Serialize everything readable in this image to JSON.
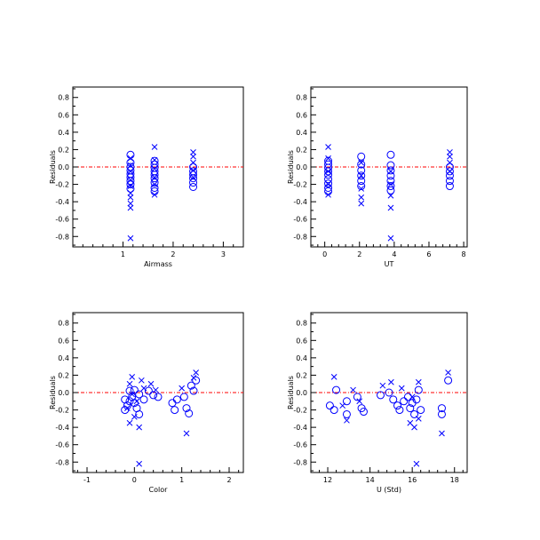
{
  "colors": {
    "marker": "#0000ff",
    "zero_line": "#ff0000",
    "axis": "#000000",
    "background": "#ffffff"
  },
  "chart_data": [
    {
      "type": "scatter",
      "xlabel": "Airmass",
      "ylabel": "Residuals",
      "xlim": [
        0,
        3.4
      ],
      "ylim": [
        -0.92,
        0.92
      ],
      "xticks": [
        1,
        2,
        3
      ],
      "yticks": [
        -0.8,
        -0.6,
        -0.4,
        -0.2,
        0.0,
        0.2,
        0.4,
        0.6,
        0.8
      ],
      "xtick_labels": [
        "1",
        "2",
        "3"
      ],
      "ytick_labels": [
        "-0.8",
        "-0.6",
        "-0.4",
        "-0.2",
        "0.0",
        "0.2",
        "0.4",
        "0.6",
        "0.8"
      ],
      "reference_line_y": 0,
      "series": [
        {
          "marker": "x",
          "points": [
            [
              1.15,
              -0.82
            ],
            [
              1.15,
              -0.47
            ],
            [
              1.15,
              -0.42
            ],
            [
              1.15,
              -0.35
            ],
            [
              1.15,
              -0.3
            ],
            [
              1.15,
              -0.22
            ],
            [
              1.15,
              -0.15
            ],
            [
              1.15,
              -0.05
            ],
            [
              1.15,
              0.02
            ],
            [
              1.15,
              0.1
            ],
            [
              1.63,
              0.23
            ],
            [
              1.63,
              0.08
            ],
            [
              1.63,
              -0.02
            ],
            [
              1.63,
              -0.12
            ],
            [
              1.63,
              -0.2
            ],
            [
              1.63,
              -0.32
            ],
            [
              2.4,
              0.17
            ],
            [
              2.4,
              0.12
            ],
            [
              2.4,
              0.05
            ],
            [
              2.4,
              -0.04
            ],
            [
              2.4,
              -0.12
            ]
          ]
        },
        {
          "marker": "o",
          "points": [
            [
              1.15,
              0.14
            ],
            [
              1.15,
              0.05
            ],
            [
              1.15,
              0.0
            ],
            [
              1.15,
              -0.04
            ],
            [
              1.15,
              -0.08
            ],
            [
              1.15,
              -0.12
            ],
            [
              1.15,
              -0.16
            ],
            [
              1.15,
              -0.2
            ],
            [
              1.15,
              -0.25
            ],
            [
              1.63,
              0.07
            ],
            [
              1.63,
              0.03
            ],
            [
              1.63,
              -0.01
            ],
            [
              1.63,
              -0.05
            ],
            [
              1.63,
              -0.09
            ],
            [
              1.63,
              -0.13
            ],
            [
              1.63,
              -0.18
            ],
            [
              1.63,
              -0.24
            ],
            [
              1.63,
              -0.28
            ],
            [
              2.4,
              0.0
            ],
            [
              2.4,
              -0.05
            ],
            [
              2.4,
              -0.09
            ],
            [
              2.4,
              -0.13
            ],
            [
              2.4,
              -0.18
            ],
            [
              2.4,
              -0.23
            ]
          ]
        }
      ]
    },
    {
      "type": "scatter",
      "xlabel": "UT",
      "ylabel": "Residuals",
      "xlim": [
        -0.8,
        8.2
      ],
      "ylim": [
        -0.92,
        0.92
      ],
      "xticks": [
        0,
        2,
        4,
        6,
        8
      ],
      "yticks": [
        -0.8,
        -0.6,
        -0.4,
        -0.2,
        0.0,
        0.2,
        0.4,
        0.6,
        0.8
      ],
      "xtick_labels": [
        "0",
        "2",
        "4",
        "6",
        "8"
      ],
      "ytick_labels": [
        "-0.8",
        "-0.6",
        "-0.4",
        "-0.2",
        "0.0",
        "0.2",
        "0.4",
        "0.6",
        "0.8"
      ],
      "reference_line_y": 0,
      "series": [
        {
          "marker": "x",
          "points": [
            [
              0.2,
              0.23
            ],
            [
              0.2,
              0.1
            ],
            [
              0.2,
              -0.05
            ],
            [
              0.2,
              -0.2
            ],
            [
              0.2,
              -0.32
            ],
            [
              2.1,
              0.05
            ],
            [
              2.1,
              -0.1
            ],
            [
              2.1,
              -0.25
            ],
            [
              2.1,
              -0.35
            ],
            [
              2.1,
              -0.42
            ],
            [
              3.8,
              -0.82
            ],
            [
              3.8,
              -0.47
            ],
            [
              3.8,
              -0.33
            ],
            [
              3.8,
              -0.2
            ],
            [
              3.8,
              -0.05
            ],
            [
              7.2,
              0.17
            ],
            [
              7.2,
              0.12
            ],
            [
              7.2,
              0.05
            ],
            [
              7.2,
              -0.05
            ]
          ]
        },
        {
          "marker": "o",
          "points": [
            [
              0.2,
              0.07
            ],
            [
              0.2,
              0.03
            ],
            [
              0.2,
              -0.01
            ],
            [
              0.2,
              -0.05
            ],
            [
              0.2,
              -0.09
            ],
            [
              0.2,
              -0.14
            ],
            [
              0.2,
              -0.19
            ],
            [
              0.2,
              -0.24
            ],
            [
              0.2,
              -0.28
            ],
            [
              2.1,
              0.12
            ],
            [
              2.1,
              0.03
            ],
            [
              2.1,
              -0.04
            ],
            [
              2.1,
              -0.1
            ],
            [
              2.1,
              -0.16
            ],
            [
              2.1,
              -0.22
            ],
            [
              3.8,
              0.14
            ],
            [
              3.8,
              0.02
            ],
            [
              3.8,
              -0.04
            ],
            [
              3.8,
              -0.1
            ],
            [
              3.8,
              -0.16
            ],
            [
              3.8,
              -0.22
            ],
            [
              3.8,
              -0.27
            ],
            [
              7.2,
              0.0
            ],
            [
              7.2,
              -0.05
            ],
            [
              7.2,
              -0.1
            ],
            [
              7.2,
              -0.16
            ],
            [
              7.2,
              -0.22
            ]
          ]
        }
      ]
    },
    {
      "type": "scatter",
      "xlabel": "Color",
      "ylabel": "Residuals",
      "xlim": [
        -1.3,
        2.3
      ],
      "ylim": [
        -0.92,
        0.92
      ],
      "xticks": [
        -1,
        0,
        1,
        2
      ],
      "yticks": [
        -0.8,
        -0.6,
        -0.4,
        -0.2,
        0.0,
        0.2,
        0.4,
        0.6,
        0.8
      ],
      "xtick_labels": [
        "-1",
        "0",
        "1",
        "2"
      ],
      "ytick_labels": [
        "-0.8",
        "-0.6",
        "-0.4",
        "-0.2",
        "0.0",
        "0.2",
        "0.4",
        "0.6",
        "0.8"
      ],
      "reference_line_y": 0,
      "series": [
        {
          "marker": "x",
          "points": [
            [
              0.1,
              -0.82
            ],
            [
              1.1,
              -0.47
            ],
            [
              0.1,
              -0.4
            ],
            [
              -0.1,
              -0.35
            ],
            [
              0.0,
              -0.28
            ],
            [
              -0.15,
              -0.18
            ],
            [
              0.05,
              -0.1
            ],
            [
              -0.05,
              -0.02
            ],
            [
              0.2,
              0.05
            ],
            [
              -0.1,
              0.1
            ],
            [
              -0.05,
              0.18
            ],
            [
              0.15,
              0.14
            ],
            [
              0.35,
              0.1
            ],
            [
              0.45,
              0.03
            ],
            [
              1.3,
              0.23
            ],
            [
              1.25,
              0.17
            ],
            [
              1.0,
              0.05
            ]
          ]
        },
        {
          "marker": "o",
          "points": [
            [
              -0.2,
              -0.2
            ],
            [
              -0.15,
              -0.15
            ],
            [
              -0.1,
              -0.1
            ],
            [
              -0.05,
              -0.05
            ],
            [
              0.0,
              -0.12
            ],
            [
              0.05,
              -0.18
            ],
            [
              0.1,
              -0.25
            ],
            [
              -0.2,
              -0.08
            ],
            [
              -0.1,
              0.02
            ],
            [
              0.0,
              0.03
            ],
            [
              0.1,
              -0.02
            ],
            [
              0.2,
              -0.08
            ],
            [
              0.3,
              0.02
            ],
            [
              0.4,
              -0.03
            ],
            [
              0.5,
              -0.05
            ],
            [
              0.8,
              -0.12
            ],
            [
              0.85,
              -0.2
            ],
            [
              0.9,
              -0.08
            ],
            [
              1.1,
              -0.18
            ],
            [
              1.15,
              -0.24
            ],
            [
              1.2,
              0.08
            ],
            [
              1.25,
              0.02
            ],
            [
              1.3,
              0.14
            ],
            [
              1.05,
              -0.05
            ]
          ]
        }
      ]
    },
    {
      "type": "scatter",
      "xlabel": "U (Std)",
      "ylabel": "Residuals",
      "xlim": [
        11.2,
        18.6
      ],
      "ylim": [
        -0.92,
        0.92
      ],
      "xticks": [
        12,
        14,
        16,
        18
      ],
      "yticks": [
        -0.8,
        -0.6,
        -0.4,
        -0.2,
        0.0,
        0.2,
        0.4,
        0.6,
        0.8
      ],
      "xtick_labels": [
        "12",
        "14",
        "16",
        "18"
      ],
      "ytick_labels": [
        "-0.8",
        "-0.6",
        "-0.4",
        "-0.2",
        "0.0",
        "0.2",
        "0.4",
        "0.6",
        "0.8"
      ],
      "reference_line_y": 0,
      "series": [
        {
          "marker": "x",
          "points": [
            [
              16.2,
              -0.82
            ],
            [
              17.4,
              -0.47
            ],
            [
              16.1,
              -0.4
            ],
            [
              15.9,
              -0.35
            ],
            [
              16.3,
              -0.3
            ],
            [
              12.9,
              -0.32
            ],
            [
              12.3,
              0.18
            ],
            [
              17.7,
              0.23
            ],
            [
              16.3,
              0.12
            ],
            [
              15.0,
              0.12
            ],
            [
              14.6,
              0.08
            ],
            [
              13.2,
              0.03
            ],
            [
              15.5,
              0.05
            ],
            [
              16.0,
              -0.05
            ],
            [
              12.7,
              -0.15
            ],
            [
              13.5,
              -0.1
            ]
          ]
        },
        {
          "marker": "o",
          "points": [
            [
              12.1,
              -0.15
            ],
            [
              12.3,
              -0.2
            ],
            [
              12.4,
              0.03
            ],
            [
              12.9,
              -0.1
            ],
            [
              12.9,
              -0.25
            ],
            [
              13.4,
              -0.05
            ],
            [
              13.6,
              -0.18
            ],
            [
              13.7,
              -0.22
            ],
            [
              14.5,
              -0.03
            ],
            [
              14.9,
              0.0
            ],
            [
              15.1,
              -0.08
            ],
            [
              15.3,
              -0.15
            ],
            [
              15.4,
              -0.2
            ],
            [
              15.6,
              -0.1
            ],
            [
              15.8,
              -0.05
            ],
            [
              15.9,
              -0.18
            ],
            [
              16.0,
              -0.12
            ],
            [
              16.1,
              -0.25
            ],
            [
              16.2,
              -0.08
            ],
            [
              16.3,
              0.03
            ],
            [
              16.4,
              -0.2
            ],
            [
              17.4,
              -0.18
            ],
            [
              17.4,
              -0.25
            ],
            [
              17.7,
              0.14
            ]
          ]
        }
      ]
    }
  ]
}
